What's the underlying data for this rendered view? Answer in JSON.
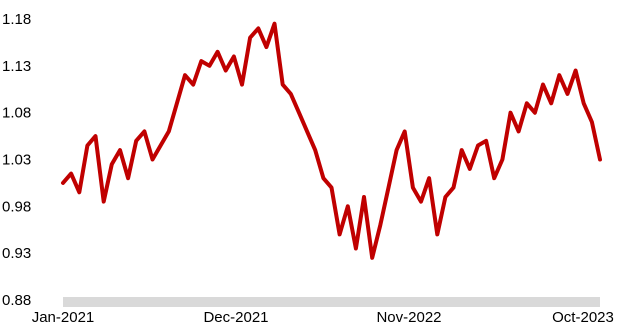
{
  "chart_data": {
    "type": "line",
    "title": "",
    "xlabel": "",
    "ylabel": "",
    "ylim": [
      0.88,
      1.18
    ],
    "y_ticks": [
      "1.18",
      "1.13",
      "1.08",
      "1.03",
      "0.98",
      "0.93",
      "0.88"
    ],
    "y_tick_values": [
      1.18,
      1.13,
      1.08,
      1.03,
      0.98,
      0.93,
      0.88
    ],
    "x_ticks": [
      "Jan-2021",
      "Dec-2021",
      "Nov-2022",
      "Oct-2023"
    ],
    "x_range": [
      "2021-01",
      "2023-10"
    ],
    "grid": false,
    "legend": "none",
    "axis_band_color": "#d9d9d9",
    "series": [
      {
        "color": "#c00000",
        "x": [
          "2021-01",
          "2021-01",
          "2021-02",
          "2021-02",
          "2021-03",
          "2021-03",
          "2021-04",
          "2021-04",
          "2021-05",
          "2021-05",
          "2021-06",
          "2021-06",
          "2021-07",
          "2021-07",
          "2021-08",
          "2021-08",
          "2021-09",
          "2021-09",
          "2021-10",
          "2021-10",
          "2021-11",
          "2021-11",
          "2021-12",
          "2021-12",
          "2022-01",
          "2022-01",
          "2022-02",
          "2022-02",
          "2022-03",
          "2022-03",
          "2022-04",
          "2022-04",
          "2022-05",
          "2022-05",
          "2022-06",
          "2022-06",
          "2022-07",
          "2022-07",
          "2022-08",
          "2022-08",
          "2022-09",
          "2022-09",
          "2022-10",
          "2022-10",
          "2022-11",
          "2022-11",
          "2022-12",
          "2022-12",
          "2023-01",
          "2023-01",
          "2023-02",
          "2023-02",
          "2023-03",
          "2023-03",
          "2023-04",
          "2023-04",
          "2023-05",
          "2023-05",
          "2023-06",
          "2023-06",
          "2023-07",
          "2023-07",
          "2023-08",
          "2023-08",
          "2023-09",
          "2023-09",
          "2023-10"
        ],
        "values": [
          1.005,
          1.015,
          0.995,
          1.045,
          1.055,
          0.985,
          1.025,
          1.04,
          1.01,
          1.05,
          1.06,
          1.03,
          1.045,
          1.06,
          1.09,
          1.12,
          1.11,
          1.135,
          1.13,
          1.145,
          1.125,
          1.14,
          1.11,
          1.16,
          1.17,
          1.15,
          1.175,
          1.11,
          1.1,
          1.08,
          1.06,
          1.04,
          1.01,
          1.0,
          0.95,
          0.98,
          0.935,
          0.99,
          0.925,
          0.96,
          1.0,
          1.04,
          1.06,
          1.0,
          0.985,
          1.01,
          0.95,
          0.99,
          1.0,
          1.04,
          1.02,
          1.045,
          1.05,
          1.01,
          1.03,
          1.08,
          1.06,
          1.09,
          1.08,
          1.11,
          1.09,
          1.12,
          1.1,
          1.125,
          1.09,
          1.07,
          1.03
        ]
      }
    ]
  }
}
